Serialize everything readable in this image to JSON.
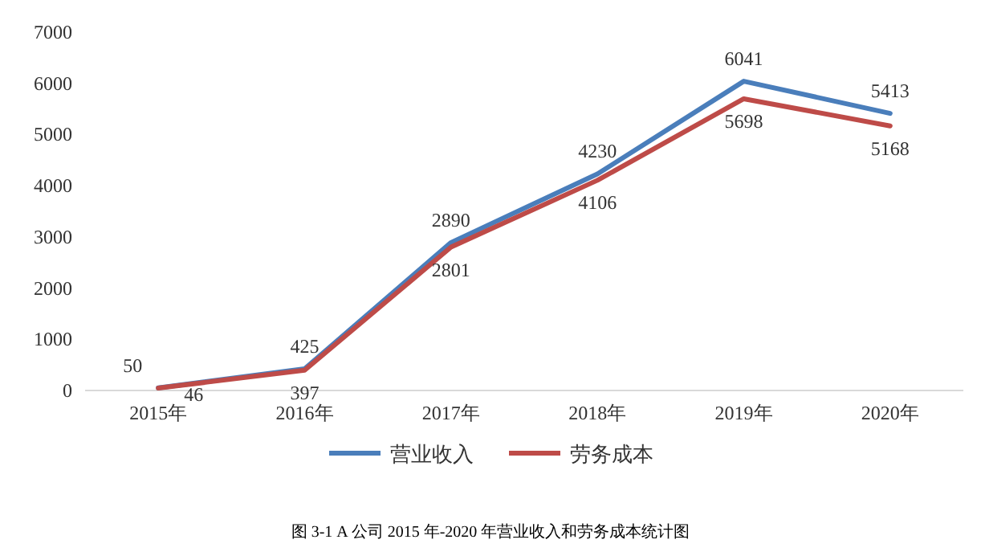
{
  "chart_data": {
    "type": "line",
    "categories": [
      "2015年",
      "2016年",
      "2017年",
      "2018年",
      "2019年",
      "2020年"
    ],
    "series": [
      {
        "name": "营业收入",
        "color": "#4a7ebb",
        "values": [
          50,
          425,
          2890,
          4230,
          6041,
          5413
        ]
      },
      {
        "name": "劳务成本",
        "color": "#be4b48",
        "values": [
          46,
          397,
          2801,
          4106,
          5698,
          5168
        ]
      }
    ],
    "ylim": [
      0,
      7000
    ],
    "yticks": [
      0,
      1000,
      2000,
      3000,
      4000,
      5000,
      6000,
      7000
    ],
    "data_labels": true,
    "legend": "bottom",
    "annotations": [
      "图 3-1 A 公司 2015 年-2020 年营业收入和劳务成本统计图"
    ]
  }
}
